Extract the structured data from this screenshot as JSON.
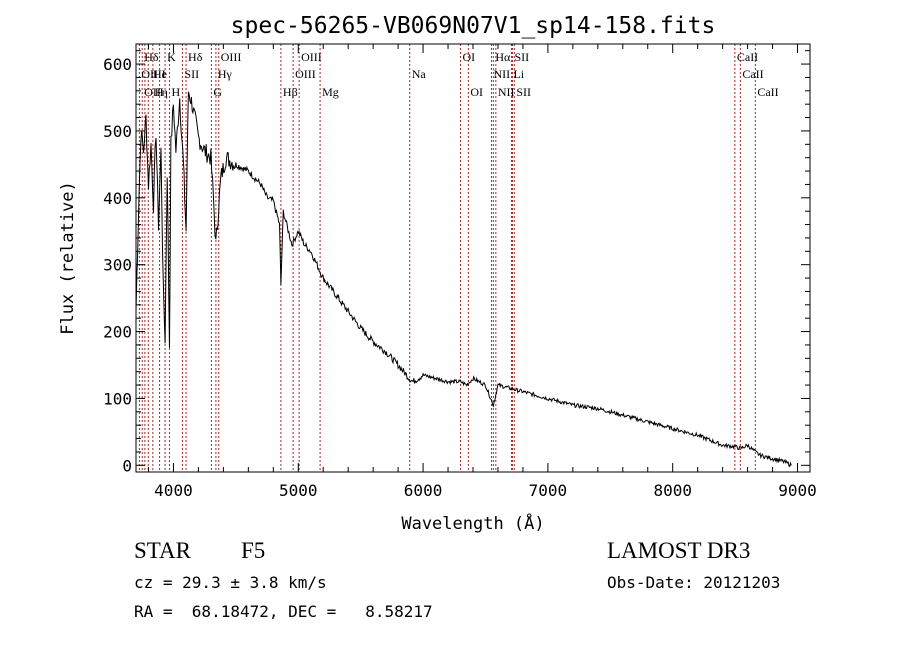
{
  "chart_data": {
    "type": "line",
    "title": "spec-56265-VB069N07V1_sp14-158.fits",
    "xlabel": "Wavelength (Å)",
    "ylabel": "Flux (relative)",
    "xlim": [
      3700,
      9100
    ],
    "ylim": [
      -10,
      630
    ],
    "xticks": [
      4000,
      5000,
      6000,
      7000,
      8000,
      9000
    ],
    "yticks": [
      0,
      100,
      200,
      300,
      400,
      500,
      600
    ],
    "grid": false,
    "series": [
      {
        "name": "spectrum",
        "x": [
          3700,
          3720,
          3740,
          3760,
          3780,
          3800,
          3820,
          3840,
          3860,
          3880,
          3900,
          3920,
          3933,
          3950,
          3968,
          3980,
          4000,
          4020,
          4050,
          4080,
          4101,
          4120,
          4150,
          4200,
          4250,
          4300,
          4320,
          4340,
          4380,
          4420,
          4500,
          4600,
          4700,
          4750,
          4800,
          4850,
          4861,
          4880,
          4900,
          4950,
          5000,
          5050,
          5100,
          5150,
          5200,
          5300,
          5400,
          5500,
          5600,
          5700,
          5800,
          5890,
          5920,
          6000,
          6100,
          6200,
          6300,
          6350,
          6400,
          6500,
          6563,
          6600,
          6700,
          6800,
          7000,
          7200,
          7400,
          7600,
          7800,
          8000,
          8200,
          8400,
          8500,
          8542,
          8600,
          8662,
          8700,
          8800,
          8900,
          8950
        ],
        "y": [
          230,
          380,
          500,
          470,
          520,
          420,
          480,
          390,
          500,
          360,
          470,
          250,
          190,
          440,
          180,
          480,
          540,
          470,
          550,
          450,
          350,
          560,
          540,
          490,
          470,
          460,
          400,
          330,
          430,
          460,
          450,
          440,
          420,
          400,
          395,
          360,
          270,
          380,
          365,
          330,
          350,
          330,
          320,
          300,
          280,
          255,
          230,
          205,
          185,
          170,
          150,
          130,
          125,
          135,
          130,
          125,
          125,
          120,
          130,
          120,
          90,
          120,
          115,
          110,
          100,
          90,
          85,
          75,
          65,
          55,
          45,
          30,
          28,
          25,
          30,
          20,
          15,
          10,
          5,
          0
        ]
      }
    ],
    "line_labels": [
      {
        "label": "Hδ",
        "x": 3750,
        "row": 0
      },
      {
        "label": "K",
        "x": 3933,
        "row": 0
      },
      {
        "label": "Hδ",
        "x": 4101,
        "row": 0
      },
      {
        "label": "OIII",
        "x": 4363,
        "row": 0
      },
      {
        "label": "OIII",
        "x": 5007,
        "row": 0
      },
      {
        "label": "OI",
        "x": 6300,
        "row": 0
      },
      {
        "label": "Hα",
        "x": 6563,
        "row": 0
      },
      {
        "label": "SII",
        "x": 6716,
        "row": 0
      },
      {
        "label": "CaII",
        "x": 8498,
        "row": 0
      },
      {
        "label": "OII",
        "x": 3727,
        "row": 1
      },
      {
        "label": "He",
        "x": 3820,
        "row": 1
      },
      {
        "label": "I",
        "x": 3889,
        "row": 1
      },
      {
        "label": "SII",
        "x": 4072,
        "row": 1
      },
      {
        "label": "Hγ",
        "x": 4340,
        "row": 1
      },
      {
        "label": "OIII",
        "x": 4959,
        "row": 1
      },
      {
        "label": "Na",
        "x": 5893,
        "row": 1
      },
      {
        "label": "NII",
        "x": 6548,
        "row": 1
      },
      {
        "label": "Li",
        "x": 6708,
        "row": 1
      },
      {
        "label": "CaII",
        "x": 8542,
        "row": 1
      },
      {
        "label": "OII",
        "x": 3750,
        "row": 2
      },
      {
        "label": "H",
        "x": 3835,
        "row": 2
      },
      {
        "label": "η",
        "x": 3889,
        "row": 2
      },
      {
        "label": "H",
        "x": 3968,
        "row": 2
      },
      {
        "label": "G",
        "x": 4304,
        "row": 2
      },
      {
        "label": "Hβ",
        "x": 4861,
        "row": 2
      },
      {
        "label": "Mg",
        "x": 5175,
        "row": 2
      },
      {
        "label": "OI",
        "x": 6363,
        "row": 2
      },
      {
        "label": "NII",
        "x": 6583,
        "row": 2
      },
      {
        "label": "SII",
        "x": 6731,
        "row": 2
      },
      {
        "label": "CaII",
        "x": 8662,
        "row": 2
      }
    ],
    "line_marker_x": [
      3727,
      3750,
      3771,
      3798,
      3835,
      3889,
      3933,
      3968,
      4072,
      4101,
      4304,
      4340,
      4363,
      4861,
      4959,
      5007,
      5175,
      5893,
      6300,
      6363,
      6548,
      6563,
      6583,
      6708,
      6716,
      6731,
      8498,
      8542,
      8662
    ]
  },
  "info": {
    "class_label": "STAR",
    "subclass": "F5",
    "cz": "cz = 29.3 ± 3.8 km/s",
    "radec": "RA =  68.18472, DEC =   8.58217",
    "survey": "LAMOST DR3",
    "obsdate": "Obs-Date: 20121203"
  },
  "colors": {
    "axis": "#000000",
    "spectrum": "#000000",
    "marker": "#b22222"
  }
}
